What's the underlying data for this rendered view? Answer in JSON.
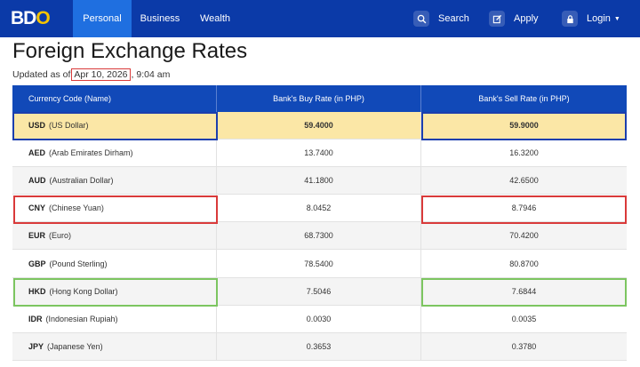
{
  "header": {
    "logo_prefix": "BD",
    "logo_o": "O",
    "nav": [
      "Personal",
      "Business",
      "Wealth"
    ],
    "search_label": "Search",
    "apply_label": "Apply",
    "login_label": "Login"
  },
  "page": {
    "title": "Foreign Exchange Rates",
    "updated_prefix": "Updated as of",
    "updated_date": "Apr 10, 2026",
    "updated_time": "9:04 am"
  },
  "table": {
    "columns": [
      "Currency Code (Name)",
      "Bank's Buy Rate (in PHP)",
      "Bank's Sell Rate (in PHP)"
    ],
    "rows": [
      {
        "code": "USD",
        "name": "(US Dollar)",
        "buy": "59.4000",
        "sell": "59.9000"
      },
      {
        "code": "AED",
        "name": "(Arab Emirates Dirham)",
        "buy": "13.7400",
        "sell": "16.3200"
      },
      {
        "code": "AUD",
        "name": "(Australian Dollar)",
        "buy": "41.1800",
        "sell": "42.6500"
      },
      {
        "code": "CNY",
        "name": "(Chinese Yuan)",
        "buy": "8.0452",
        "sell": "8.7946"
      },
      {
        "code": "EUR",
        "name": "(Euro)",
        "buy": "68.7300",
        "sell": "70.4200"
      },
      {
        "code": "GBP",
        "name": "(Pound Sterling)",
        "buy": "78.5400",
        "sell": "80.8700"
      },
      {
        "code": "HKD",
        "name": "(Hong Kong Dollar)",
        "buy": "7.5046",
        "sell": "7.6844"
      },
      {
        "code": "IDR",
        "name": "(Indonesian Rupiah)",
        "buy": "0.0030",
        "sell": "0.0035"
      },
      {
        "code": "JPY",
        "name": "(Japanese Yen)",
        "buy": "0.3653",
        "sell": "0.3780"
      }
    ]
  },
  "colors": {
    "header_bg": "#0b3aa8",
    "nav_active": "#1f6fe0",
    "table_header": "#1149b8",
    "usd_highlight": "#fbe7a6",
    "annotation_blue": "#1c3fae",
    "annotation_red": "#d93a3a",
    "annotation_green": "#7cc560"
  },
  "icons": {
    "search": "search-icon",
    "apply": "edit-icon",
    "login": "lock-icon"
  }
}
